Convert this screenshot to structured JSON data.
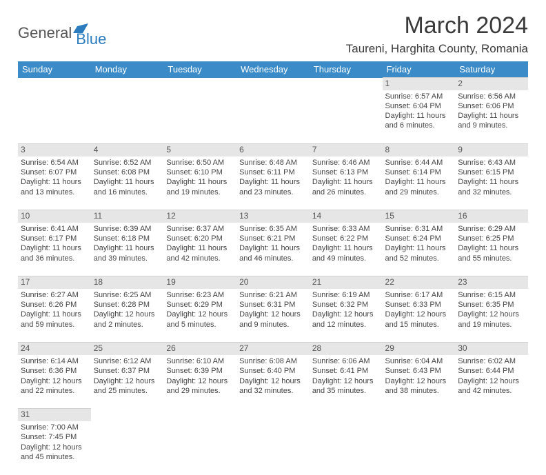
{
  "logo": {
    "text1": "General",
    "text2": "Blue"
  },
  "title": "March 2024",
  "location": "Taureni, Harghita County, Romania",
  "colors": {
    "header_bg": "#3b8bc8",
    "header_text": "#ffffff",
    "daynum_bg": "#e6e6e6",
    "text": "#444444"
  },
  "day_headers": [
    "Sunday",
    "Monday",
    "Tuesday",
    "Wednesday",
    "Thursday",
    "Friday",
    "Saturday"
  ],
  "weeks": [
    {
      "nums": [
        "",
        "",
        "",
        "",
        "",
        "1",
        "2"
      ],
      "cells": [
        null,
        null,
        null,
        null,
        null,
        {
          "sunrise": "Sunrise: 6:57 AM",
          "sunset": "Sunset: 6:04 PM",
          "d1": "Daylight: 11 hours",
          "d2": "and 6 minutes."
        },
        {
          "sunrise": "Sunrise: 6:56 AM",
          "sunset": "Sunset: 6:06 PM",
          "d1": "Daylight: 11 hours",
          "d2": "and 9 minutes."
        }
      ]
    },
    {
      "nums": [
        "3",
        "4",
        "5",
        "6",
        "7",
        "8",
        "9"
      ],
      "cells": [
        {
          "sunrise": "Sunrise: 6:54 AM",
          "sunset": "Sunset: 6:07 PM",
          "d1": "Daylight: 11 hours",
          "d2": "and 13 minutes."
        },
        {
          "sunrise": "Sunrise: 6:52 AM",
          "sunset": "Sunset: 6:08 PM",
          "d1": "Daylight: 11 hours",
          "d2": "and 16 minutes."
        },
        {
          "sunrise": "Sunrise: 6:50 AM",
          "sunset": "Sunset: 6:10 PM",
          "d1": "Daylight: 11 hours",
          "d2": "and 19 minutes."
        },
        {
          "sunrise": "Sunrise: 6:48 AM",
          "sunset": "Sunset: 6:11 PM",
          "d1": "Daylight: 11 hours",
          "d2": "and 23 minutes."
        },
        {
          "sunrise": "Sunrise: 6:46 AM",
          "sunset": "Sunset: 6:13 PM",
          "d1": "Daylight: 11 hours",
          "d2": "and 26 minutes."
        },
        {
          "sunrise": "Sunrise: 6:44 AM",
          "sunset": "Sunset: 6:14 PM",
          "d1": "Daylight: 11 hours",
          "d2": "and 29 minutes."
        },
        {
          "sunrise": "Sunrise: 6:43 AM",
          "sunset": "Sunset: 6:15 PM",
          "d1": "Daylight: 11 hours",
          "d2": "and 32 minutes."
        }
      ]
    },
    {
      "nums": [
        "10",
        "11",
        "12",
        "13",
        "14",
        "15",
        "16"
      ],
      "cells": [
        {
          "sunrise": "Sunrise: 6:41 AM",
          "sunset": "Sunset: 6:17 PM",
          "d1": "Daylight: 11 hours",
          "d2": "and 36 minutes."
        },
        {
          "sunrise": "Sunrise: 6:39 AM",
          "sunset": "Sunset: 6:18 PM",
          "d1": "Daylight: 11 hours",
          "d2": "and 39 minutes."
        },
        {
          "sunrise": "Sunrise: 6:37 AM",
          "sunset": "Sunset: 6:20 PM",
          "d1": "Daylight: 11 hours",
          "d2": "and 42 minutes."
        },
        {
          "sunrise": "Sunrise: 6:35 AM",
          "sunset": "Sunset: 6:21 PM",
          "d1": "Daylight: 11 hours",
          "d2": "and 46 minutes."
        },
        {
          "sunrise": "Sunrise: 6:33 AM",
          "sunset": "Sunset: 6:22 PM",
          "d1": "Daylight: 11 hours",
          "d2": "and 49 minutes."
        },
        {
          "sunrise": "Sunrise: 6:31 AM",
          "sunset": "Sunset: 6:24 PM",
          "d1": "Daylight: 11 hours",
          "d2": "and 52 minutes."
        },
        {
          "sunrise": "Sunrise: 6:29 AM",
          "sunset": "Sunset: 6:25 PM",
          "d1": "Daylight: 11 hours",
          "d2": "and 55 minutes."
        }
      ]
    },
    {
      "nums": [
        "17",
        "18",
        "19",
        "20",
        "21",
        "22",
        "23"
      ],
      "cells": [
        {
          "sunrise": "Sunrise: 6:27 AM",
          "sunset": "Sunset: 6:26 PM",
          "d1": "Daylight: 11 hours",
          "d2": "and 59 minutes."
        },
        {
          "sunrise": "Sunrise: 6:25 AM",
          "sunset": "Sunset: 6:28 PM",
          "d1": "Daylight: 12 hours",
          "d2": "and 2 minutes."
        },
        {
          "sunrise": "Sunrise: 6:23 AM",
          "sunset": "Sunset: 6:29 PM",
          "d1": "Daylight: 12 hours",
          "d2": "and 5 minutes."
        },
        {
          "sunrise": "Sunrise: 6:21 AM",
          "sunset": "Sunset: 6:31 PM",
          "d1": "Daylight: 12 hours",
          "d2": "and 9 minutes."
        },
        {
          "sunrise": "Sunrise: 6:19 AM",
          "sunset": "Sunset: 6:32 PM",
          "d1": "Daylight: 12 hours",
          "d2": "and 12 minutes."
        },
        {
          "sunrise": "Sunrise: 6:17 AM",
          "sunset": "Sunset: 6:33 PM",
          "d1": "Daylight: 12 hours",
          "d2": "and 15 minutes."
        },
        {
          "sunrise": "Sunrise: 6:15 AM",
          "sunset": "Sunset: 6:35 PM",
          "d1": "Daylight: 12 hours",
          "d2": "and 19 minutes."
        }
      ]
    },
    {
      "nums": [
        "24",
        "25",
        "26",
        "27",
        "28",
        "29",
        "30"
      ],
      "cells": [
        {
          "sunrise": "Sunrise: 6:14 AM",
          "sunset": "Sunset: 6:36 PM",
          "d1": "Daylight: 12 hours",
          "d2": "and 22 minutes."
        },
        {
          "sunrise": "Sunrise: 6:12 AM",
          "sunset": "Sunset: 6:37 PM",
          "d1": "Daylight: 12 hours",
          "d2": "and 25 minutes."
        },
        {
          "sunrise": "Sunrise: 6:10 AM",
          "sunset": "Sunset: 6:39 PM",
          "d1": "Daylight: 12 hours",
          "d2": "and 29 minutes."
        },
        {
          "sunrise": "Sunrise: 6:08 AM",
          "sunset": "Sunset: 6:40 PM",
          "d1": "Daylight: 12 hours",
          "d2": "and 32 minutes."
        },
        {
          "sunrise": "Sunrise: 6:06 AM",
          "sunset": "Sunset: 6:41 PM",
          "d1": "Daylight: 12 hours",
          "d2": "and 35 minutes."
        },
        {
          "sunrise": "Sunrise: 6:04 AM",
          "sunset": "Sunset: 6:43 PM",
          "d1": "Daylight: 12 hours",
          "d2": "and 38 minutes."
        },
        {
          "sunrise": "Sunrise: 6:02 AM",
          "sunset": "Sunset: 6:44 PM",
          "d1": "Daylight: 12 hours",
          "d2": "and 42 minutes."
        }
      ]
    },
    {
      "nums": [
        "31",
        "",
        "",
        "",
        "",
        "",
        ""
      ],
      "cells": [
        {
          "sunrise": "Sunrise: 7:00 AM",
          "sunset": "Sunset: 7:45 PM",
          "d1": "Daylight: 12 hours",
          "d2": "and 45 minutes."
        },
        null,
        null,
        null,
        null,
        null,
        null
      ]
    }
  ]
}
